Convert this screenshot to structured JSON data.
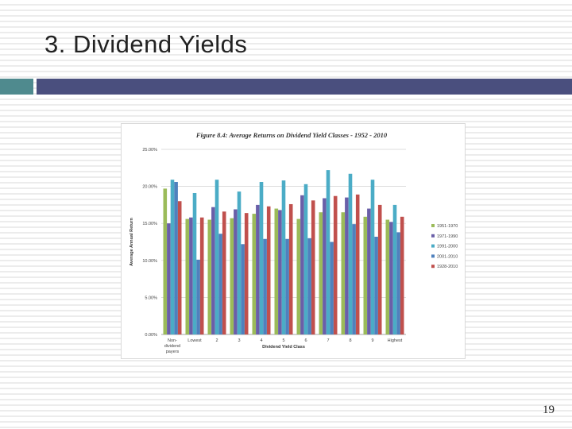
{
  "slide": {
    "title": "3. Dividend Yields",
    "page_number": "19",
    "accent_colors": {
      "left_bar": "#4f8a8e",
      "title_bar": "#4a4f7e"
    }
  },
  "chart_data": {
    "type": "bar",
    "title": "Figure 8.4: Average Returns on Dividend Yield Classes - 1952 - 2010",
    "xlabel": "Dividend Yield Class",
    "ylabel": "Average Annual Return",
    "ylim": [
      0,
      0.25
    ],
    "yticks": [
      "0.00%",
      "5.00%",
      "10.00%",
      "15.00%",
      "20.00%",
      "25.00%"
    ],
    "categories": [
      [
        "Non-",
        "dividend",
        "payers"
      ],
      [
        "Lowest"
      ],
      [
        "2"
      ],
      [
        "3"
      ],
      [
        "4"
      ],
      [
        "5"
      ],
      [
        "6"
      ],
      [
        "7"
      ],
      [
        "8"
      ],
      [
        "9"
      ],
      [
        "Highest"
      ]
    ],
    "series": [
      {
        "name": "1951-1970",
        "color": "#9bbb59",
        "values": [
          0.197,
          0.156,
          0.155,
          0.157,
          0.163,
          0.17,
          0.156,
          0.165,
          0.165,
          0.159,
          0.155
        ]
      },
      {
        "name": "1971-1990",
        "color": "#6a5fa8",
        "values": [
          0.15,
          0.158,
          0.172,
          0.169,
          0.175,
          0.168,
          0.188,
          0.184,
          0.185,
          0.17,
          0.152
        ]
      },
      {
        "name": "1991-2000",
        "color": "#4bacc6",
        "values": [
          0.209,
          0.191,
          0.209,
          0.193,
          0.206,
          0.208,
          0.203,
          0.222,
          0.217,
          0.209,
          0.175
        ]
      },
      {
        "name": "2001-2010",
        "color": "#4f81bd",
        "values": [
          0.206,
          0.101,
          0.136,
          0.122,
          0.129,
          0.129,
          0.13,
          0.125,
          0.149,
          0.132,
          0.138
        ]
      },
      {
        "name": "1928-2010",
        "color": "#c0504d",
        "values": [
          0.18,
          0.158,
          0.166,
          0.164,
          0.173,
          0.176,
          0.181,
          0.187,
          0.189,
          0.175,
          0.159
        ]
      }
    ],
    "grid": "horizontal",
    "legend_position": "right"
  }
}
